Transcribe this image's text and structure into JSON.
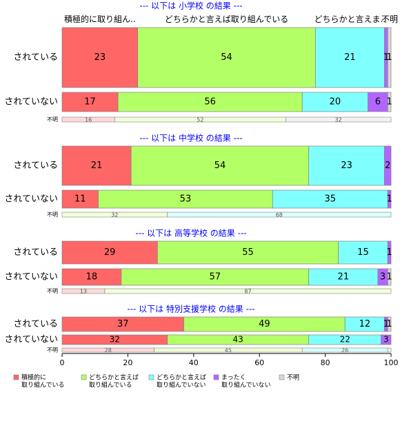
{
  "chart_data": {
    "type": "bar",
    "orientation": "horizontal",
    "stacked": "percent",
    "xlim": [
      0,
      100
    ],
    "xticks": [
      0,
      20,
      40,
      60,
      80,
      100
    ],
    "grid": false,
    "legend_position": "bottom-left",
    "top_column_labels": [
      "積極的に取り組ん..",
      "どちらかと言えば取り組んでいる",
      "どちらかと言えま..",
      "不明"
    ],
    "categories": [
      {
        "name": "積極的に取り組んでいる",
        "legend_lines": [
          "積極的に",
          "取り組んでいる"
        ],
        "color": "#FF6666"
      },
      {
        "name": "どちらかと言えば取り組んでいる",
        "legend_lines": [
          "どちらかと言えば",
          "取り組んでいる"
        ],
        "color": "#B3FF66"
      },
      {
        "name": "どちらかと言えば取り組んでいない",
        "legend_lines": [
          "どちらかと言えば",
          "取り組んでいない"
        ],
        "color": "#80FFFF"
      },
      {
        "name": "まったく取り組んでいない",
        "legend_lines": [
          "まったく",
          "取り組んでいない"
        ],
        "color": "#B266FF"
      },
      {
        "name": "不明",
        "legend_lines": [
          "不明"
        ],
        "color": "#D9D9D9"
      }
    ],
    "panels": [
      {
        "title": "--- 以下は 小学校 の結果 ---",
        "rows": [
          {
            "label": "されている",
            "values": [
              23,
              54,
              21,
              1,
              1
            ]
          },
          {
            "label": "されていない",
            "values": [
              17,
              56,
              20,
              6,
              1
            ]
          }
        ],
        "unknown": {
          "label": "不明",
          "values": [
            16,
            52,
            0,
            0,
            32
          ]
        }
      },
      {
        "title": "--- 以下は 中学校 の結果 ---",
        "rows": [
          {
            "label": "されている",
            "values": [
              21,
              54,
              23,
              2,
              0
            ]
          },
          {
            "label": "されていない",
            "values": [
              11,
              53,
              35,
              1,
              0
            ]
          }
        ],
        "unknown": {
          "label": "不明",
          "values": [
            0,
            32,
            68,
            0,
            0
          ]
        }
      },
      {
        "title": "--- 以下は 高等学校 の結果 ---",
        "rows": [
          {
            "label": "されている",
            "values": [
              29,
              55,
              15,
              1,
              0
            ]
          },
          {
            "label": "されていない",
            "values": [
              18,
              57,
              21,
              3,
              1
            ]
          }
        ],
        "unknown": {
          "label": "不明",
          "values": [
            13,
            87,
            0,
            0,
            0
          ]
        }
      },
      {
        "title": "--- 以下は 特別支援学校 の結果 ---",
        "rows": [
          {
            "label": "されている",
            "values": [
              37,
              49,
              12,
              1,
              1
            ]
          },
          {
            "label": "されていない",
            "values": [
              32,
              43,
              22,
              3,
              0
            ]
          }
        ],
        "unknown": {
          "label": "不明",
          "values": [
            28,
            45,
            26,
            0,
            1
          ]
        }
      }
    ]
  }
}
